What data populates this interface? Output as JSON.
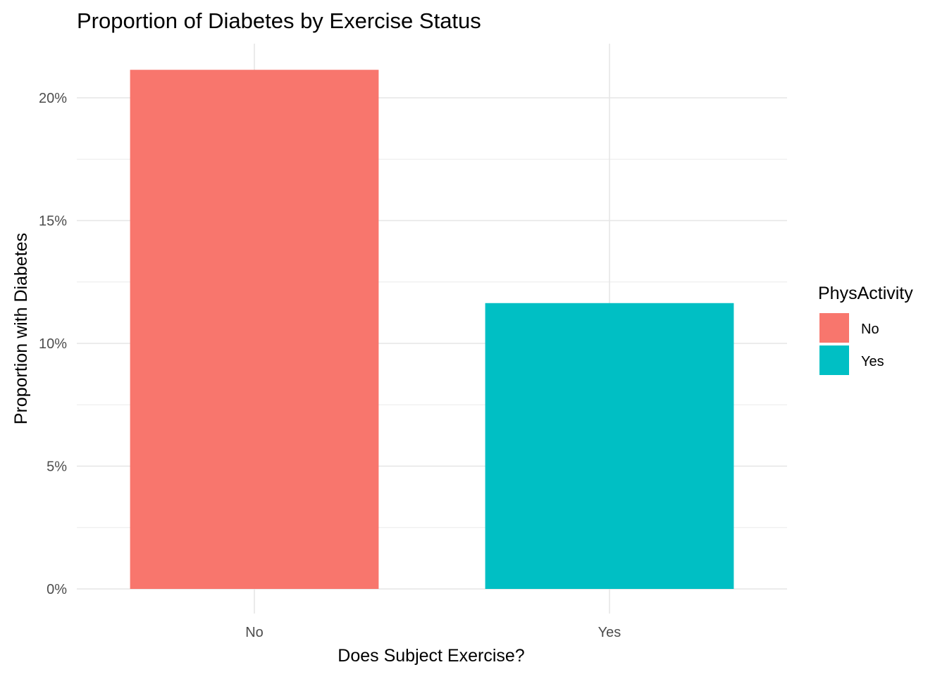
{
  "chart_data": {
    "type": "bar",
    "title": "Proportion of Diabetes by Exercise Status",
    "xlabel": "Does Subject Exercise?",
    "ylabel": "Proportion with Diabetes",
    "categories": [
      "No",
      "Yes"
    ],
    "values": [
      0.2114,
      0.1164
    ],
    "colors": [
      "#F8766D",
      "#00BFC4"
    ],
    "ylim": [
      0,
      0.22
    ],
    "yticks": [
      0,
      0.05,
      0.1,
      0.15,
      0.2
    ],
    "ytick_labels": [
      "0%",
      "5%",
      "10%",
      "15%",
      "20%"
    ],
    "grid": true,
    "legend": {
      "title": "PhysActivity",
      "placement": "right",
      "entries": [
        {
          "label": "No",
          "color": "#F8766D"
        },
        {
          "label": "Yes",
          "color": "#00BFC4"
        }
      ]
    }
  }
}
